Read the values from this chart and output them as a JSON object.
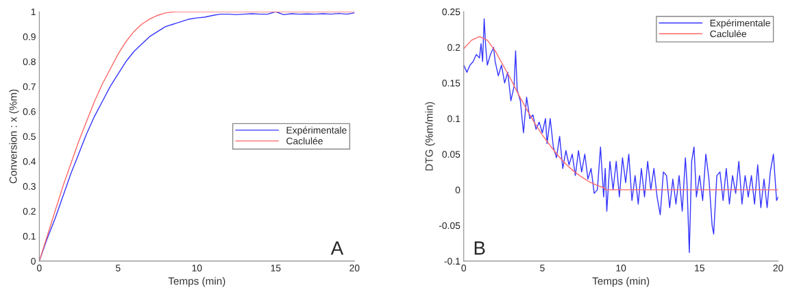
{
  "chart_data": [
    {
      "type": "line",
      "xlabel": "Temps (min)",
      "ylabel": "Conversion : x (%m)",
      "xlim": [
        0,
        20
      ],
      "ylim": [
        0,
        1
      ],
      "xticks": [
        0,
        5,
        10,
        15,
        20
      ],
      "yticks": [
        0,
        0.1,
        0.2,
        0.3,
        0.4,
        0.5,
        0.6,
        0.7,
        0.8,
        0.9,
        1
      ],
      "grid": false,
      "legend": "right",
      "annotations": [
        "A"
      ],
      "series": [
        {
          "name": "Expérimentale",
          "color": "#3333ff",
          "x": [
            0,
            0.5,
            1,
            1.5,
            2,
            2.5,
            3,
            3.5,
            4,
            4.5,
            5,
            5.5,
            6,
            6.5,
            7,
            7.5,
            8,
            8.5,
            9,
            9.5,
            10,
            10.5,
            11,
            11.5,
            12,
            12.5,
            13,
            13.5,
            14,
            14.5,
            15,
            15.5,
            16,
            16.5,
            17,
            17.5,
            18,
            18.5,
            19,
            19.5,
            20
          ],
          "values": [
            0,
            0.09,
            0.17,
            0.26,
            0.35,
            0.43,
            0.51,
            0.58,
            0.64,
            0.7,
            0.75,
            0.8,
            0.84,
            0.87,
            0.9,
            0.92,
            0.94,
            0.95,
            0.96,
            0.97,
            0.975,
            0.978,
            0.985,
            0.99,
            0.99,
            0.988,
            0.99,
            0.992,
            0.99,
            0.99,
            1.0,
            0.988,
            0.992,
            0.99,
            0.991,
            0.99,
            0.992,
            0.99,
            0.993,
            0.99,
            0.995
          ]
        },
        {
          "name": "Caclulée",
          "color": "#ff6666",
          "x": [
            0,
            0.5,
            1,
            1.5,
            2,
            2.5,
            3,
            3.5,
            4,
            4.5,
            5,
            5.5,
            6,
            6.5,
            7,
            7.5,
            8,
            8.5,
            8.8,
            20
          ],
          "values": [
            0,
            0.1,
            0.2,
            0.3,
            0.39,
            0.48,
            0.56,
            0.64,
            0.71,
            0.77,
            0.83,
            0.88,
            0.92,
            0.95,
            0.97,
            0.985,
            0.995,
            0.999,
            1,
            1
          ]
        }
      ]
    },
    {
      "type": "line",
      "xlabel": "Temps (min)",
      "ylabel": "DTG (%m/min)",
      "xlim": [
        0,
        20
      ],
      "ylim": [
        -0.1,
        0.25
      ],
      "xticks": [
        0,
        5,
        10,
        15,
        20
      ],
      "yticks": [
        -0.1,
        -0.05,
        0,
        0.05,
        0.1,
        0.15,
        0.2,
        0.25
      ],
      "grid": false,
      "legend": "top right",
      "annotations": [
        "B"
      ],
      "series": [
        {
          "name": "Expérimentale",
          "color": "#3333ff",
          "x": [
            0,
            0.2,
            0.4,
            0.6,
            0.8,
            1.0,
            1.1,
            1.2,
            1.3,
            1.4,
            1.5,
            1.7,
            1.9,
            2.0,
            2.2,
            2.4,
            2.6,
            2.8,
            3.0,
            3.2,
            3.3,
            3.4,
            3.6,
            3.8,
            4.0,
            4.2,
            4.4,
            4.6,
            4.8,
            5.0,
            5.2,
            5.3,
            5.5,
            5.7,
            5.9,
            6.1,
            6.3,
            6.5,
            6.7,
            6.9,
            7.1,
            7.3,
            7.5,
            7.7,
            7.9,
            8.1,
            8.3,
            8.5,
            8.7,
            8.9,
            9.0,
            9.1,
            9.3,
            9.5,
            9.7,
            9.9,
            10.1,
            10.3,
            10.5,
            10.7,
            10.9,
            11.1,
            11.3,
            11.5,
            11.7,
            11.9,
            12.1,
            12.3,
            12.5,
            12.7,
            12.9,
            13.1,
            13.3,
            13.5,
            13.7,
            13.9,
            14.1,
            14.2,
            14.35,
            14.5,
            14.65,
            14.8,
            15.0,
            15.2,
            15.4,
            15.6,
            15.8,
            15.9,
            16.1,
            16.3,
            16.5,
            16.7,
            16.9,
            17.1,
            17.3,
            17.5,
            17.7,
            17.9,
            18.1,
            18.3,
            18.5,
            18.7,
            18.9,
            19.1,
            19.3,
            19.5,
            19.7,
            19.9,
            20.0
          ],
          "values": [
            0.175,
            0.165,
            0.175,
            0.18,
            0.19,
            0.185,
            0.205,
            0.18,
            0.24,
            0.2,
            0.175,
            0.19,
            0.2,
            0.18,
            0.16,
            0.175,
            0.15,
            0.165,
            0.125,
            0.145,
            0.195,
            0.14,
            0.125,
            0.08,
            0.13,
            0.1,
            0.105,
            0.085,
            0.095,
            0.08,
            0.1,
            0.065,
            0.1,
            0.06,
            0.045,
            0.075,
            0.03,
            0.055,
            0.035,
            0.05,
            0.02,
            0.055,
            0.025,
            0.05,
            0.015,
            0.03,
            -0.005,
            0.0,
            0.06,
            -0.01,
            0.03,
            -0.03,
            0.04,
            0.0,
            0.04,
            -0.01,
            0.045,
            0.01,
            0.05,
            -0.015,
            0.02,
            -0.02,
            0.03,
            -0.01,
            0.04,
            0.0,
            0.03,
            -0.01,
            -0.035,
            0.025,
            0.02,
            -0.025,
            0.015,
            -0.02,
            0.02,
            -0.03,
            0.045,
            0.01,
            -0.088,
            0.04,
            0.06,
            -0.01,
            0.02,
            -0.015,
            0.05,
            0.015,
            -0.05,
            -0.062,
            0.02,
            0.025,
            -0.015,
            0.03,
            -0.02,
            0.02,
            -0.005,
            0.04,
            -0.02,
            0.02,
            -0.01,
            0.02,
            -0.02,
            0.035,
            -0.025,
            0.015,
            -0.025,
            0.025,
            0.05,
            -0.015,
            -0.01
          ]
        },
        {
          "name": "Caclulée",
          "color": "#ff6666",
          "x": [
            0,
            0.5,
            1,
            1.5,
            2,
            2.5,
            3,
            3.5,
            4,
            4.5,
            5,
            5.5,
            6,
            6.5,
            7,
            7.5,
            8,
            8.5,
            8.9,
            9,
            20
          ],
          "values": [
            0.198,
            0.21,
            0.215,
            0.21,
            0.195,
            0.175,
            0.155,
            0.133,
            0.113,
            0.094,
            0.077,
            0.062,
            0.048,
            0.036,
            0.026,
            0.018,
            0.011,
            0.006,
            0.003,
            0,
            0
          ]
        }
      ]
    }
  ]
}
